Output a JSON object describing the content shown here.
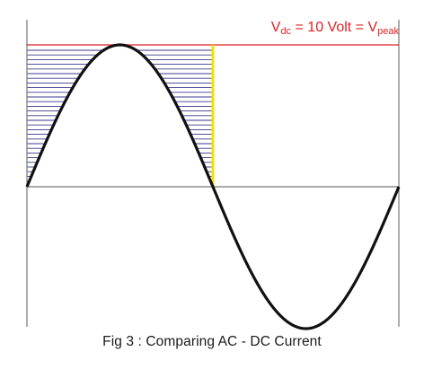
{
  "figure": {
    "caption": "Fig 3 : Comparing AC - DC Current",
    "label": {
      "v": "V",
      "dc_sub": "dc",
      "middle": " = 10 Volt = V",
      "peak_sub": "peak"
    },
    "colors": {
      "sine": "#111111",
      "axis": "#777777",
      "dc_line": "#e02020",
      "hatch": "#3a3a8c",
      "marker": "#f5e000"
    }
  },
  "chart_data": {
    "type": "line",
    "series": [
      {
        "function": "sine",
        "peak": 10,
        "periods": 1
      }
    ],
    "dc_level": 10,
    "shaded_region": "first positive half-cycle between curve and DC level"
  }
}
